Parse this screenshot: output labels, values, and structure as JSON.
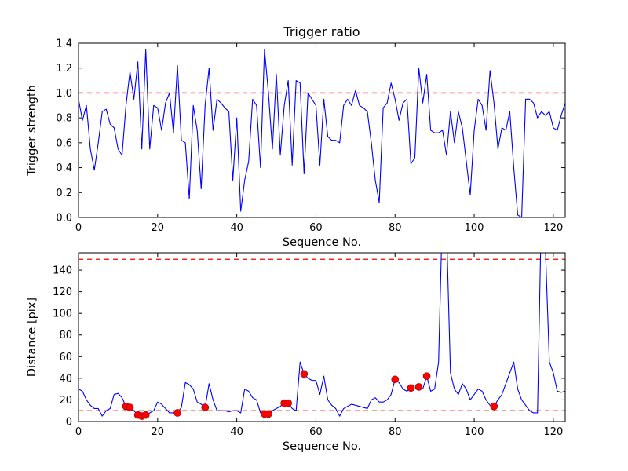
{
  "figure": {
    "background": "#ffffff"
  },
  "chart_data": [
    {
      "type": "line",
      "title": "Trigger ratio",
      "xlabel": "Sequence No.",
      "ylabel": "Trigger strength",
      "xlim": [
        0,
        123
      ],
      "ylim": [
        0.0,
        1.4
      ],
      "xticks": [
        0,
        20,
        40,
        60,
        80,
        100,
        120
      ],
      "xtick_labels": [
        "0",
        "20",
        "40",
        "60",
        "80",
        "100",
        "120"
      ],
      "yticks": [
        0.0,
        0.2,
        0.4,
        0.6,
        0.8,
        1.0,
        1.2,
        1.4
      ],
      "ytick_labels": [
        "0.0",
        "0.2",
        "0.4",
        "0.6",
        "0.8",
        "1.0",
        "1.2",
        "1.4"
      ],
      "line_color": "#0000ff",
      "grid": false,
      "legend": "none",
      "hlines": [
        {
          "y": 1.0,
          "color": "#ff0000",
          "style": "dashed"
        }
      ],
      "x_is_index": true,
      "y": [
        0.95,
        0.78,
        0.9,
        0.55,
        0.38,
        0.6,
        0.85,
        0.87,
        0.75,
        0.72,
        0.55,
        0.5,
        0.9,
        1.17,
        0.95,
        1.25,
        0.55,
        1.35,
        0.55,
        0.9,
        0.88,
        0.7,
        0.92,
        1.0,
        0.68,
        1.22,
        0.62,
        0.6,
        0.15,
        0.9,
        0.7,
        0.23,
        0.9,
        1.2,
        0.7,
        0.95,
        0.92,
        0.88,
        0.85,
        0.3,
        0.8,
        0.05,
        0.3,
        0.45,
        0.95,
        0.9,
        0.4,
        1.35,
        1.0,
        0.55,
        1.15,
        0.5,
        0.9,
        1.1,
        0.42,
        1.1,
        1.08,
        0.35,
        1.0,
        0.95,
        0.9,
        0.42,
        0.95,
        0.65,
        0.62,
        0.62,
        0.6,
        0.9,
        0.95,
        0.9,
        1.02,
        0.9,
        0.88,
        0.85,
        0.6,
        0.3,
        0.12,
        0.88,
        0.92,
        1.08,
        0.95,
        0.78,
        0.92,
        0.95,
        0.43,
        0.48,
        1.2,
        0.92,
        1.15,
        0.7,
        0.68,
        0.68,
        0.7,
        0.5,
        0.85,
        0.6,
        0.85,
        0.72,
        0.45,
        0.18,
        0.7,
        0.95,
        0.9,
        0.7,
        1.18,
        0.92,
        0.55,
        0.72,
        0.7,
        0.85,
        0.4,
        0.02,
        0.0,
        0.95,
        0.95,
        0.92,
        0.8,
        0.85,
        0.82,
        0.85,
        0.72,
        0.7,
        0.82,
        0.92
      ]
    },
    {
      "type": "line+scatter",
      "title": "",
      "xlabel": "Sequence No.",
      "ylabel": "Distance [pix]",
      "xlim": [
        0,
        123
      ],
      "ylim": [
        0,
        156
      ],
      "xticks": [
        0,
        20,
        40,
        60,
        80,
        100,
        120
      ],
      "xtick_labels": [
        "0",
        "20",
        "40",
        "60",
        "80",
        "100",
        "120"
      ],
      "yticks": [
        0,
        20,
        40,
        60,
        80,
        100,
        120,
        140
      ],
      "ytick_labels": [
        "0",
        "20",
        "40",
        "60",
        "80",
        "100",
        "120",
        "140"
      ],
      "line_color": "#0000ff",
      "grid": false,
      "legend": "none",
      "hlines": [
        {
          "y": 150,
          "color": "#ff0000",
          "style": "dashed"
        },
        {
          "y": 10,
          "color": "#ff0000",
          "style": "dashed"
        }
      ],
      "x_is_index": true,
      "y": [
        30,
        28,
        20,
        15,
        12,
        12,
        5,
        10,
        12,
        25,
        26,
        22,
        14,
        13,
        10,
        6,
        5,
        6,
        8,
        10,
        18,
        16,
        12,
        8,
        8,
        8,
        13,
        36,
        34,
        30,
        18,
        16,
        13,
        35,
        20,
        10,
        10,
        10,
        9,
        10,
        10,
        8,
        30,
        28,
        22,
        20,
        8,
        7,
        7,
        10,
        12,
        14,
        17,
        17,
        12,
        10,
        55,
        44,
        40,
        38,
        38,
        25,
        42,
        20,
        15,
        12,
        5,
        12,
        14,
        16,
        15,
        14,
        13,
        12,
        20,
        22,
        18,
        18,
        20,
        25,
        39,
        36,
        30,
        28,
        31,
        30,
        32,
        30,
        42,
        28,
        30,
        55,
        200,
        180,
        45,
        30,
        25,
        35,
        30,
        20,
        25,
        30,
        28,
        20,
        15,
        14,
        20,
        25,
        35,
        45,
        55,
        30,
        20,
        15,
        10,
        8,
        8,
        200,
        160,
        55,
        45,
        28,
        27,
        28
      ],
      "scatter": {
        "color": "#ff0000",
        "points": [
          [
            12,
            14
          ],
          [
            13,
            13
          ],
          [
            15,
            6
          ],
          [
            16,
            5
          ],
          [
            17,
            6
          ],
          [
            25,
            8
          ],
          [
            32,
            13
          ],
          [
            47,
            7
          ],
          [
            48,
            7
          ],
          [
            52,
            17
          ],
          [
            53,
            17
          ],
          [
            57,
            44
          ],
          [
            80,
            39
          ],
          [
            84,
            31
          ],
          [
            86,
            32
          ],
          [
            88,
            42
          ],
          [
            105,
            14
          ]
        ]
      }
    }
  ]
}
